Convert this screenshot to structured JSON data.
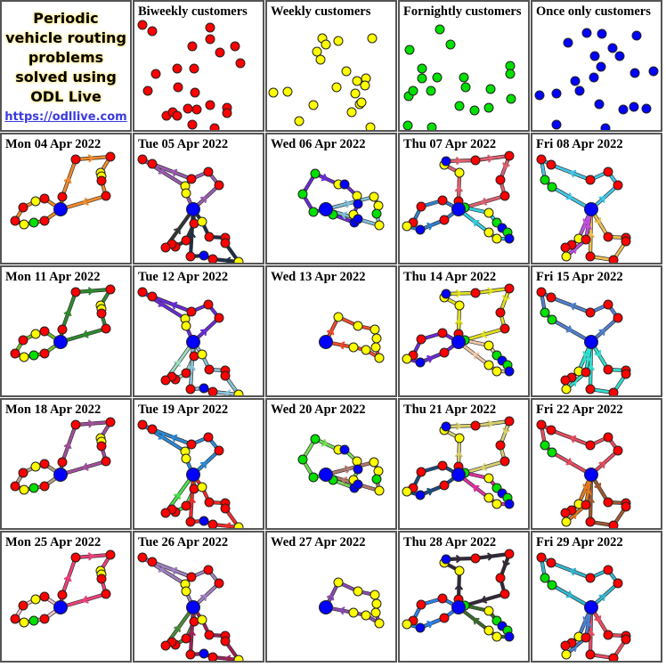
{
  "intro": {
    "title_lines": [
      "Periodic",
      "vehicle routing",
      "problems",
      "solved using",
      "ODL Live"
    ],
    "link": "https://odllive.com"
  },
  "stop_colors": {
    "r": "#ff0000",
    "y": "#ffff00",
    "g": "#00e000",
    "b": "#0000ff"
  },
  "customer_types": [
    {
      "title": "Biweekly customers",
      "color": "#ff0000"
    },
    {
      "title": "Weekly customers",
      "color": "#ffff00"
    },
    {
      "title": "Fornightly customers",
      "color": "#00e000"
    },
    {
      "title": "Once only customers",
      "color": "#0000ff"
    }
  ],
  "days": [
    {
      "title": "Mon 04 Apr 2022",
      "route_colors": [
        "#f28a2a",
        "#f28a2a"
      ]
    },
    {
      "title": "Tue 05 Apr 2022",
      "route_colors": [
        "#9a5cb0",
        "#333333",
        "#1e3048"
      ]
    },
    {
      "title": "Wed 06 Apr 2022",
      "route_colors": [
        "#6a2ad8",
        "#80c0d8"
      ]
    },
    {
      "title": "Thu 07 Apr 2022",
      "route_colors": [
        "#e06070",
        "#3080d0",
        "#30d0e0"
      ]
    },
    {
      "title": "Fri 08 Apr 2022",
      "route_colors": [
        "#40c8e8",
        "#f0c050",
        "#c050e0"
      ]
    },
    {
      "title": "Mon 11 Apr 2022",
      "route_colors": [
        "#2e8b2e",
        "#6abf2a"
      ]
    },
    {
      "title": "Tue 12 Apr 2022",
      "route_colors": [
        "#6a2ad8",
        "#a0dcc0",
        "#8cc0d8"
      ]
    },
    {
      "title": "Wed 13 Apr 2022",
      "route_colors": [
        "#f04a2a"
      ]
    },
    {
      "title": "Thu 14 Apr 2022",
      "route_colors": [
        "#e0e020",
        "#6a2ad8",
        "#f0c8a8"
      ]
    },
    {
      "title": "Fri 15 Apr 2022",
      "route_colors": [
        "#5080d0",
        "#30e0d0",
        "#30e0d0"
      ]
    },
    {
      "title": "Mon 18 Apr 2022",
      "route_colors": [
        "#a24f9a",
        "#b8a088"
      ]
    },
    {
      "title": "Tue 19 Apr 2022",
      "route_colors": [
        "#2a8ad8",
        "#4ae04a",
        "#f02a2a"
      ]
    },
    {
      "title": "Wed 20 Apr 2022",
      "route_colors": [
        "#70e050",
        "#b07a70"
      ]
    },
    {
      "title": "Thu 21 Apr 2022",
      "route_colors": [
        "#d8d070",
        "#1a4a80",
        "#e030a0"
      ]
    },
    {
      "title": "Fri 22 Apr 2022",
      "route_colors": [
        "#e84a60",
        "#a05a30",
        "#e07a20"
      ]
    },
    {
      "title": "Mon 25 Apr 2022",
      "route_colors": [
        "#f0407a",
        "#f4c0cc"
      ]
    },
    {
      "title": "Tue 26 Apr 2022",
      "route_colors": [
        "#a080c0",
        "#4a8a3a",
        "#a0205a"
      ]
    },
    {
      "title": "Wed 27 Apr 2022",
      "route_colors": [
        "#8a4ab0"
      ]
    },
    {
      "title": "Thu 28 Apr 2022",
      "route_colors": [
        "#302838",
        "#2a80f0",
        "#3a6a2a"
      ]
    },
    {
      "title": "Fri 29 Apr 2022",
      "route_colors": [
        "#30b8d0",
        "#f04a60",
        "#4a80d0"
      ]
    }
  ]
}
